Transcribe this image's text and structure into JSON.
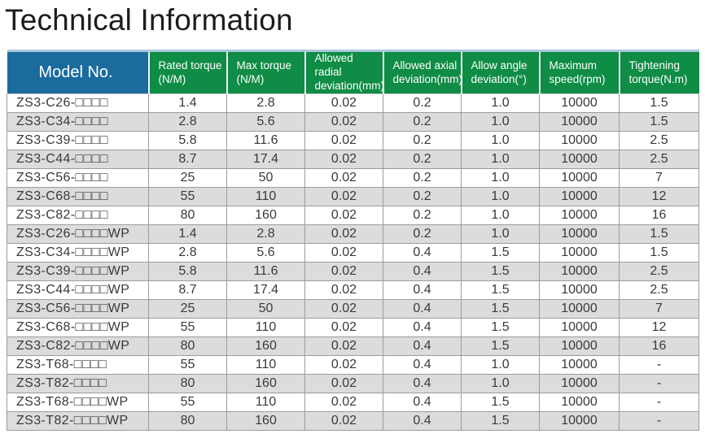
{
  "title": "Technical Information",
  "chart_data": {
    "type": "table",
    "title": "Technical Information",
    "columns": [
      "Model No.",
      "Rated torque\n(N/M)",
      "Max torque\n(N/M)",
      "Allowed radial\ndeviation(mm)",
      "Allowed axial\ndeviation(mm)",
      "Allow angle\ndeviation(°)",
      "Maximum\nspeed(rpm)",
      "Tightening\ntorque(N.m)"
    ],
    "rows": [
      [
        "ZS3-C26-□□□□",
        "1.4",
        "2.8",
        "0.02",
        "0.2",
        "1.0",
        "10000",
        "1.5"
      ],
      [
        "ZS3-C34-□□□□",
        "2.8",
        "5.6",
        "0.02",
        "0.2",
        "1.0",
        "10000",
        "1.5"
      ],
      [
        "ZS3-C39-□□□□",
        "5.8",
        "11.6",
        "0.02",
        "0.2",
        "1.0",
        "10000",
        "2.5"
      ],
      [
        "ZS3-C44-□□□□",
        "8.7",
        "17.4",
        "0.02",
        "0.2",
        "1.0",
        "10000",
        "2.5"
      ],
      [
        "ZS3-C56-□□□□",
        "25",
        "50",
        "0.02",
        "0.2",
        "1.0",
        "10000",
        "7"
      ],
      [
        "ZS3-C68-□□□□",
        "55",
        "110",
        "0.02",
        "0.2",
        "1.0",
        "10000",
        "12"
      ],
      [
        "ZS3-C82-□□□□",
        "80",
        "160",
        "0.02",
        "0.2",
        "1.0",
        "10000",
        "16"
      ],
      [
        "ZS3-C26-□□□□WP",
        "1.4",
        "2.8",
        "0.02",
        "0.2",
        "1.0",
        "10000",
        "1.5"
      ],
      [
        "ZS3-C34-□□□□WP",
        "2.8",
        "5.6",
        "0.02",
        "0.4",
        "1.5",
        "10000",
        "1.5"
      ],
      [
        "ZS3-C39-□□□□WP",
        "5.8",
        "11.6",
        "0.02",
        "0.4",
        "1.5",
        "10000",
        "2.5"
      ],
      [
        "ZS3-C44-□□□□WP",
        "8.7",
        "17.4",
        "0.02",
        "0.4",
        "1.5",
        "10000",
        "2.5"
      ],
      [
        "ZS3-C56-□□□□WP",
        "25",
        "50",
        "0.02",
        "0.4",
        "1.5",
        "10000",
        "7"
      ],
      [
        "ZS3-C68-□□□□WP",
        "55",
        "110",
        "0.02",
        "0.4",
        "1.5",
        "10000",
        "12"
      ],
      [
        "ZS3-C82-□□□□WP",
        "80",
        "160",
        "0.02",
        "0.4",
        "1.5",
        "10000",
        "16"
      ],
      [
        "ZS3-T68-□□□□",
        "55",
        "110",
        "0.02",
        "0.4",
        "1.0",
        "10000",
        "-"
      ],
      [
        "ZS3-T82-□□□□",
        "80",
        "160",
        "0.02",
        "0.4",
        "1.0",
        "10000",
        "-"
      ],
      [
        "ZS3-T68-□□□□WP",
        "55",
        "110",
        "0.02",
        "0.4",
        "1.5",
        "10000",
        "-"
      ],
      [
        "ZS3-T82-□□□□WP",
        "80",
        "160",
        "0.02",
        "0.4",
        "1.5",
        "10000",
        "-"
      ]
    ]
  },
  "colors": {
    "header_blue": "#1b6b9e",
    "header_green": "#0f8c45",
    "header_text": "#ffffff",
    "row_alternate": "#dcdcdc",
    "row_default": "#ffffff",
    "grid_border": "#9c9c9c",
    "body_text": "#3a3a3a",
    "title_text": "#1c1c1c"
  }
}
